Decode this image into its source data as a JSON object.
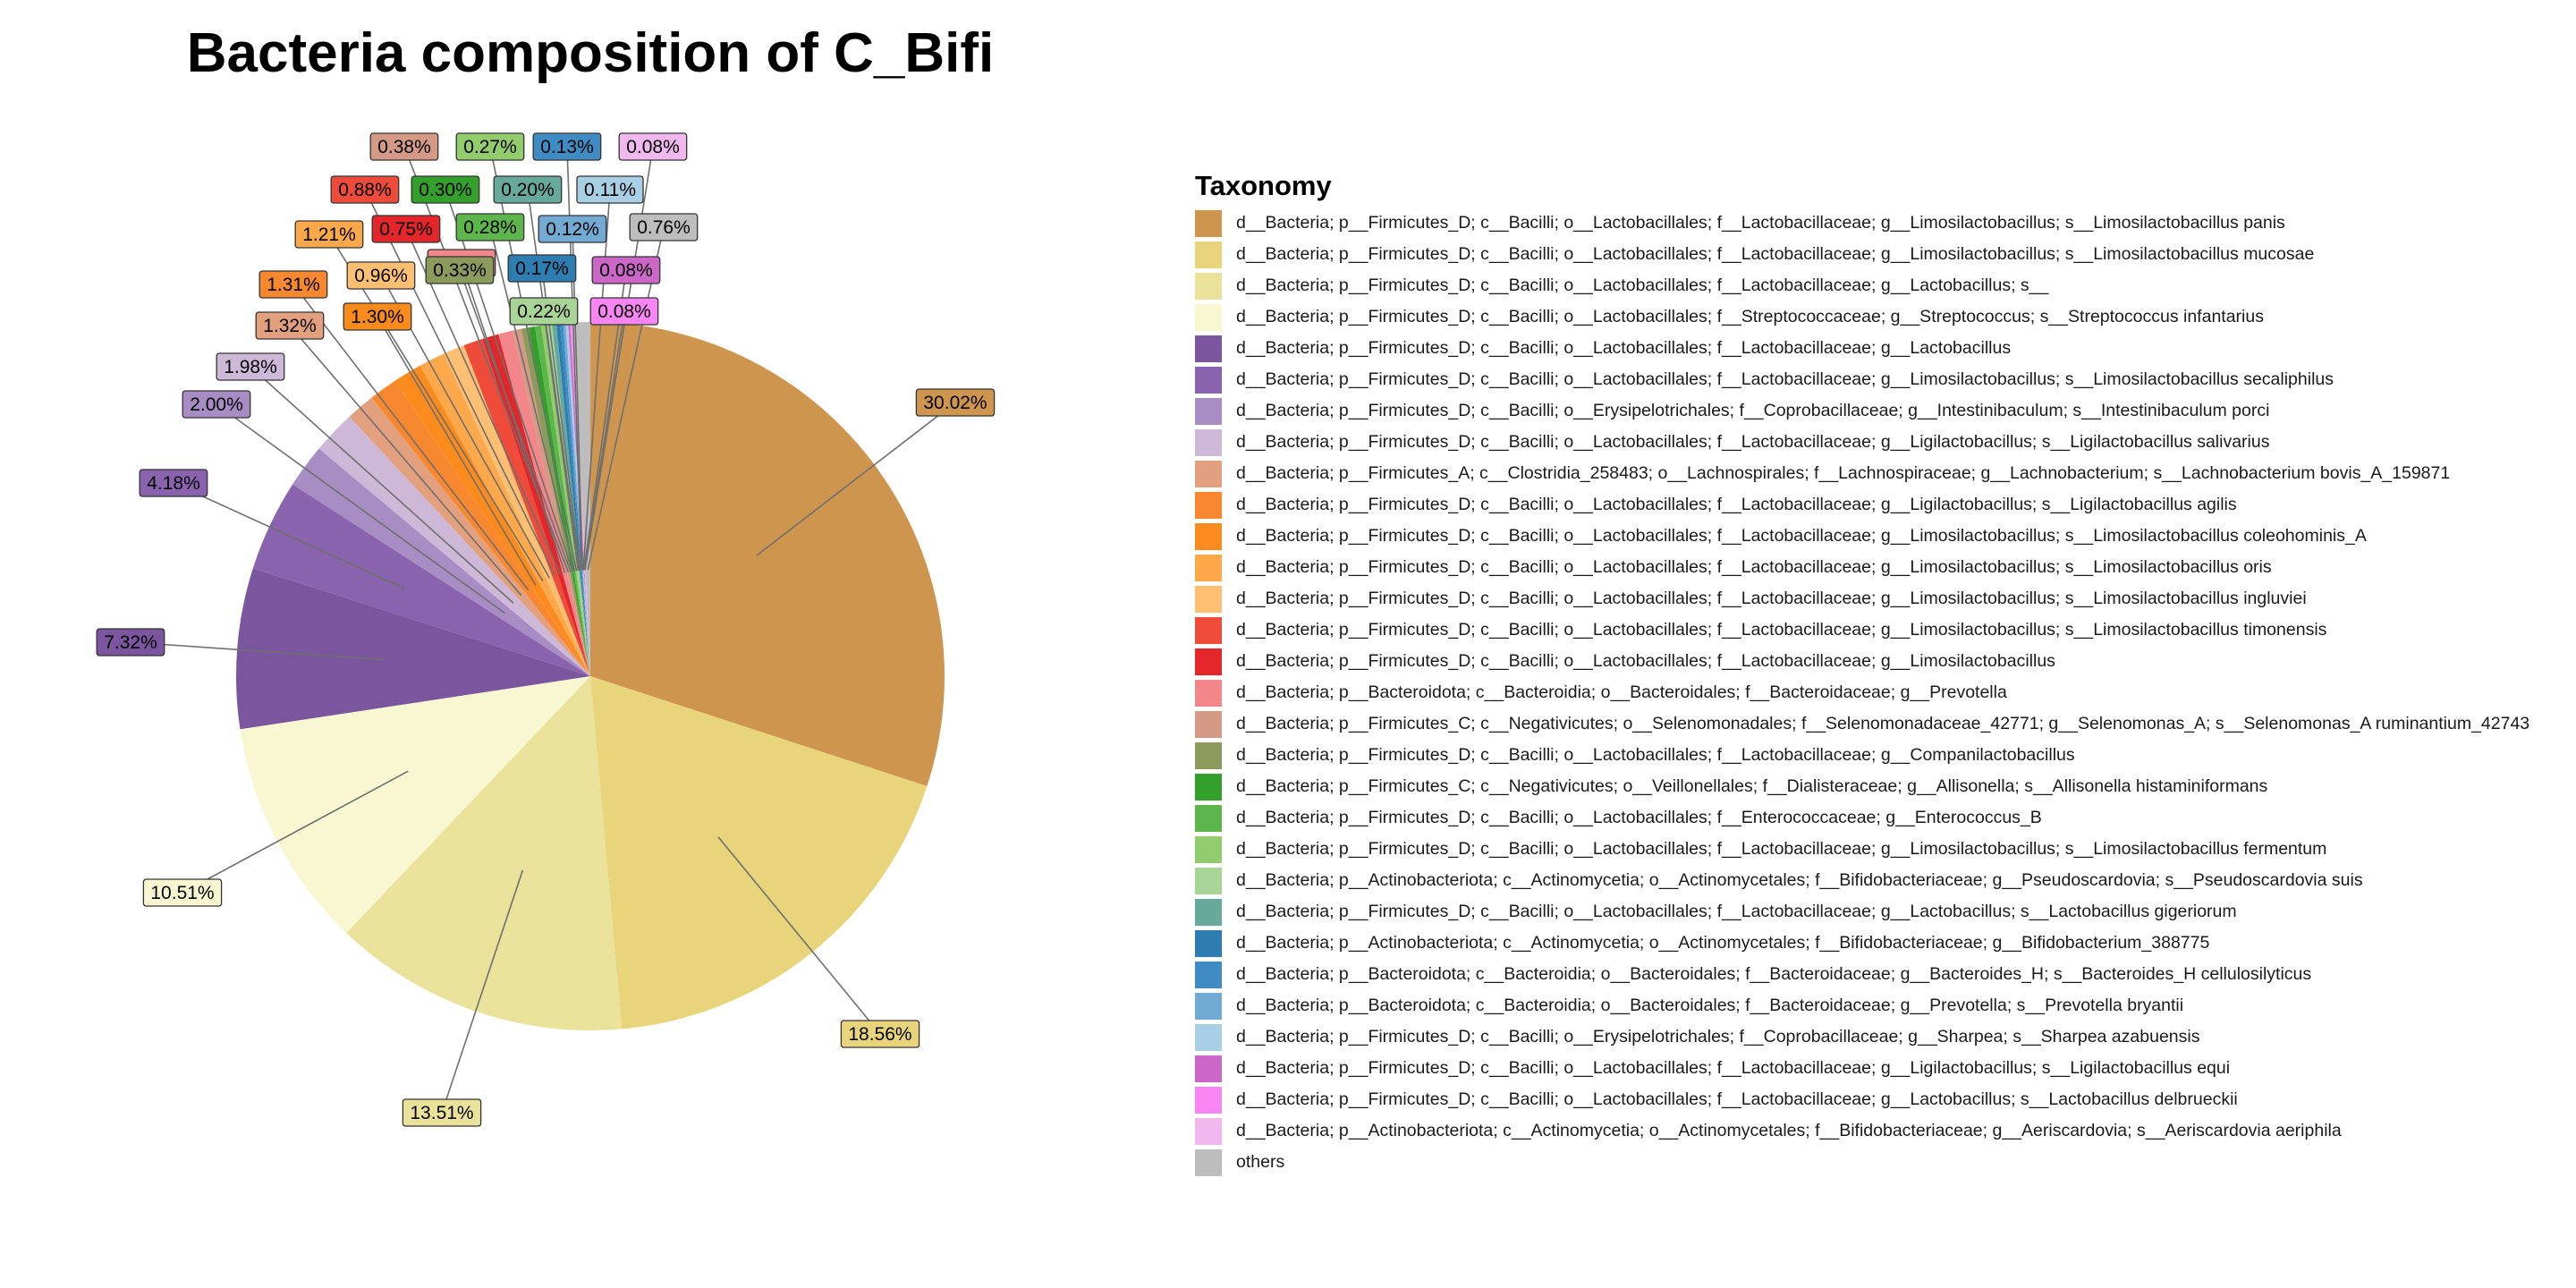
{
  "chart_data": {
    "type": "pie",
    "title": "Bacteria composition of C_Bifi",
    "legend_title": "Taxonomy",
    "legend_position": "right",
    "slices": [
      {
        "label": "d__Bacteria; p__Firmicutes_D; c__Bacilli; o__Lactobacillales; f__Lactobacillaceae; g__Limosilactobacillus; s__Limosilactobacillus panis",
        "value": 30.02,
        "display": "30.02%",
        "color": "#CE954F"
      },
      {
        "label": "d__Bacteria; p__Firmicutes_D; c__Bacilli; o__Lactobacillales; f__Lactobacillaceae; g__Limosilactobacillus; s__Limosilactobacillus mucosae",
        "value": 18.56,
        "display": "18.56%",
        "color": "#E8D47A"
      },
      {
        "label": "d__Bacteria; p__Firmicutes_D; c__Bacilli; o__Lactobacillales; f__Lactobacillaceae; g__Lactobacillus; s__",
        "value": 13.51,
        "display": "13.51%",
        "color": "#EAE29A"
      },
      {
        "label": "d__Bacteria; p__Firmicutes_D; c__Bacilli; o__Lactobacillales; f__Streptococcaceae; g__Streptococcus; s__Streptococcus infantarius",
        "value": 10.51,
        "display": "10.51%",
        "color": "#F8F7D2"
      },
      {
        "label": "d__Bacteria; p__Firmicutes_D; c__Bacilli; o__Lactobacillales; f__Lactobacillaceae; g__Lactobacillus",
        "value": 7.32,
        "display": "7.32%",
        "color": "#7B559D"
      },
      {
        "label": "d__Bacteria; p__Firmicutes_D; c__Bacilli; o__Lactobacillales; f__Lactobacillaceae; g__Limosilactobacillus; s__Limosilactobacillus secaliphilus",
        "value": 4.18,
        "display": "4.18%",
        "color": "#8A63AF"
      },
      {
        "label": "d__Bacteria; p__Firmicutes_D; c__Bacilli; o__Erysipelotrichales; f__Coprobacillaceae; g__Intestinibaculum; s__Intestinibaculum porci",
        "value": 2.0,
        "display": "2.00%",
        "color": "#A88CC4"
      },
      {
        "label": "d__Bacteria; p__Firmicutes_D; c__Bacilli; o__Lactobacillales; f__Lactobacillaceae; g__Ligilactobacillus; s__Ligilactobacillus salivarius",
        "value": 1.98,
        "display": "1.98%",
        "color": "#CDB8D8"
      },
      {
        "label": "d__Bacteria; p__Firmicutes_A; c__Clostridia_258483; o__Lachnospirales; f__Lachnospiraceae; g__Lachnobacterium; s__Lachnobacterium bovis_A_159871",
        "value": 1.32,
        "display": "1.32%",
        "color": "#E2A07F"
      },
      {
        "label": "d__Bacteria; p__Firmicutes_D; c__Bacilli; o__Lactobacillales; f__Lactobacillaceae; g__Ligilactobacillus; s__Ligilactobacillus agilis",
        "value": 1.31,
        "display": "1.31%",
        "color": "#F7882F"
      },
      {
        "label": "d__Bacteria; p__Firmicutes_D; c__Bacilli; o__Lactobacillales; f__Lactobacillaceae; g__Limosilactobacillus; s__Limosilactobacillus coleohominis_A",
        "value": 1.3,
        "display": "1.30%",
        "color": "#FB8B1C"
      },
      {
        "label": "d__Bacteria; p__Firmicutes_D; c__Bacilli; o__Lactobacillales; f__Lactobacillaceae; g__Limosilactobacillus; s__Limosilactobacillus oris",
        "value": 1.21,
        "display": "1.21%",
        "color": "#FDA84A"
      },
      {
        "label": "d__Bacteria; p__Firmicutes_D; c__Bacilli; o__Lactobacillales; f__Lactobacillaceae; g__Limosilactobacillus; s__Limosilactobacillus ingluviei",
        "value": 0.96,
        "display": "0.96%",
        "color": "#FDBF72"
      },
      {
        "label": "d__Bacteria; p__Firmicutes_D; c__Bacilli; o__Lactobacillales; f__Lactobacillaceae; g__Limosilactobacillus; s__Limosilactobacillus timonensis",
        "value": 0.88,
        "display": "0.88%",
        "color": "#EE4B3A"
      },
      {
        "label": "d__Bacteria; p__Firmicutes_D; c__Bacilli; o__Lactobacillales; f__Lactobacillaceae; g__Limosilactobacillus",
        "value": 0.75,
        "display": "0.75%",
        "color": "#E3262A"
      },
      {
        "label": "d__Bacteria; p__Bacteroidota; c__Bacteroidia; o__Bacteroidales; f__Bacteroidaceae; g__Prevotella",
        "value": 0.67,
        "display": "0.67%",
        "color": "#F3868A"
      },
      {
        "label": "d__Bacteria; p__Firmicutes_C; c__Negativicutes; o__Selenomonadales; f__Selenomonadaceae_42771; g__Selenomonas_A; s__Selenomonas_A ruminantium_42743",
        "value": 0.38,
        "display": "0.38%",
        "color": "#D49A85"
      },
      {
        "label": "d__Bacteria; p__Firmicutes_D; c__Bacilli; o__Lactobacillales; f__Lactobacillaceae; g__Companilactobacillus",
        "value": 0.33,
        "display": "0.33%",
        "color": "#8C9A5C"
      },
      {
        "label": "d__Bacteria; p__Firmicutes_C; c__Negativicutes; o__Veillonellales; f__Dialisteraceae; g__Allisonella; s__Allisonella histaminiformans",
        "value": 0.3,
        "display": "0.30%",
        "color": "#34A02C"
      },
      {
        "label": "d__Bacteria; p__Firmicutes_D; c__Bacilli; o__Lactobacillales; f__Enterococcaceae; g__Enterococcus_B",
        "value": 0.28,
        "display": "0.28%",
        "color": "#5DB64B"
      },
      {
        "label": "d__Bacteria; p__Firmicutes_D; c__Bacilli; o__Lactobacillales; f__Lactobacillaceae; g__Limosilactobacillus; s__Limosilactobacillus fermentum",
        "value": 0.27,
        "display": "0.27%",
        "color": "#92CC6C"
      },
      {
        "label": "d__Bacteria; p__Actinobacteriota; c__Actinomycetia; o__Actinomycetales; f__Bifidobacteriaceae; g__Pseudoscardovia; s__Pseudoscardovia suis",
        "value": 0.22,
        "display": "0.22%",
        "color": "#A8D597"
      },
      {
        "label": "d__Bacteria; p__Firmicutes_D; c__Bacilli; o__Lactobacillales; f__Lactobacillaceae; g__Lactobacillus; s__Lactobacillus gigeriorum",
        "value": 0.2,
        "display": "0.20%",
        "color": "#67A99A"
      },
      {
        "label": "d__Bacteria; p__Actinobacteriota; c__Actinomycetia; o__Actinomycetales; f__Bifidobacteriaceae; g__Bifidobacterium_388775",
        "value": 0.17,
        "display": "0.17%",
        "color": "#2D7DB0"
      },
      {
        "label": "d__Bacteria; p__Bacteroidota; c__Bacteroidia; o__Bacteroidales; f__Bacteroidaceae; g__Bacteroides_H; s__Bacteroides_H cellulosilyticus",
        "value": 0.13,
        "display": "0.13%",
        "color": "#3F8CC5"
      },
      {
        "label": "d__Bacteria; p__Bacteroidota; c__Bacteroidia; o__Bacteroidales; f__Bacteroidaceae; g__Prevotella; s__Prevotella bryantii",
        "value": 0.12,
        "display": "0.12%",
        "color": "#73AAD4"
      },
      {
        "label": "d__Bacteria; p__Firmicutes_D; c__Bacilli; o__Erysipelotrichales; f__Coprobacillaceae; g__Sharpea; s__Sharpea azabuensis",
        "value": 0.11,
        "display": "0.11%",
        "color": "#A9CFE5"
      },
      {
        "label": "d__Bacteria; p__Firmicutes_D; c__Bacilli; o__Lactobacillales; f__Lactobacillaceae; g__Ligilactobacillus; s__Ligilactobacillus equi",
        "value": 0.08,
        "display": "0.08%",
        "color": "#CB67C6"
      },
      {
        "label": "d__Bacteria; p__Firmicutes_D; c__Bacilli; o__Lactobacillales; f__Lactobacillaceae; g__Lactobacillus; s__Lactobacillus delbrueckii",
        "value": 0.08,
        "display": "0.08%",
        "color": "#F885F2"
      },
      {
        "label": "d__Bacteria; p__Actinobacteriota; c__Actinomycetia; o__Actinomycetales; f__Bifidobacteriaceae; g__Aeriscardovia; s__Aeriscardovia aeriphila",
        "value": 0.08,
        "display": "0.08%",
        "color": "#F1B8EE"
      },
      {
        "label": "others",
        "value": 0.76,
        "display": "0.76%",
        "color": "#BDBDBD"
      }
    ]
  }
}
